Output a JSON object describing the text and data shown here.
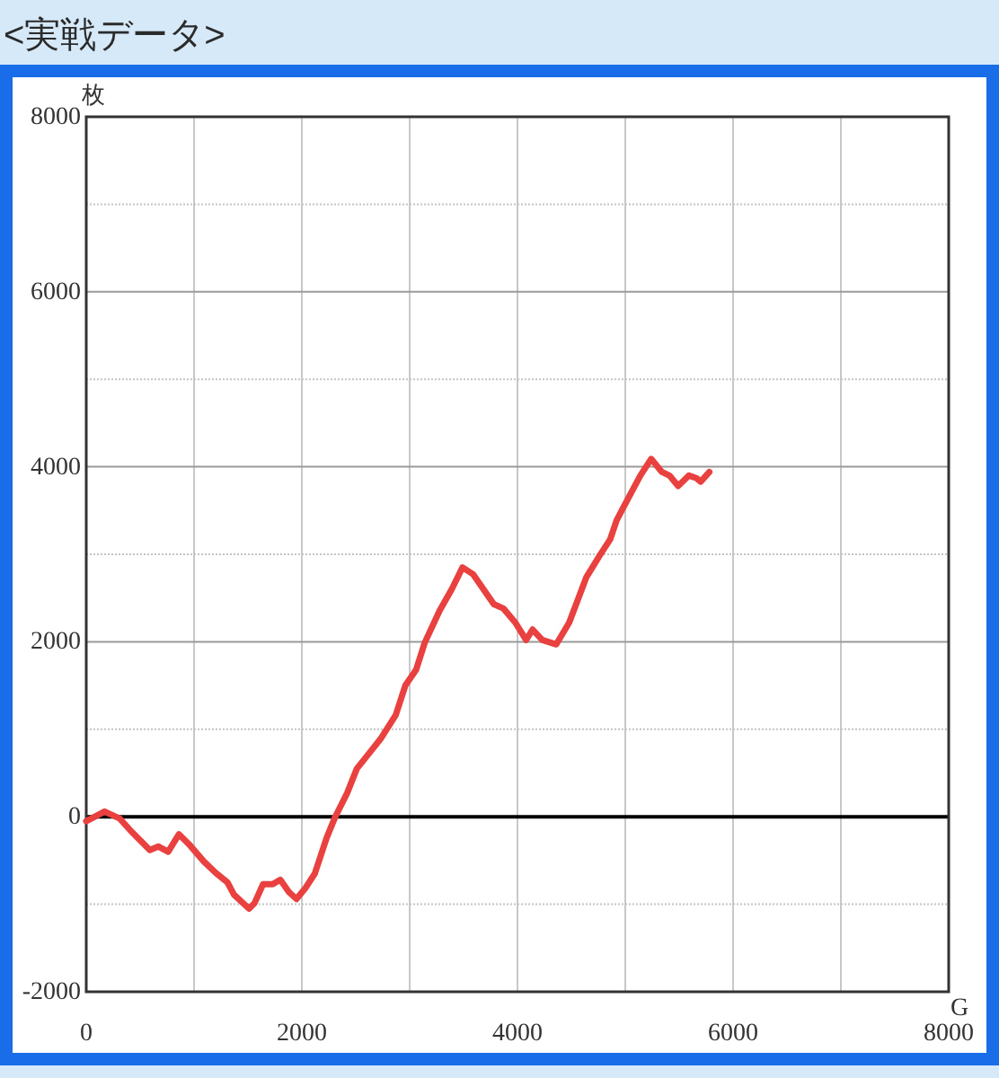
{
  "chart_data": {
    "type": "line",
    "title": "<実戦データ>",
    "xlabel": "G",
    "ylabel": "枚",
    "series": [
      {
        "color": "#e8413f",
        "x": [
          0,
          170,
          310,
          420,
          590,
          670,
          760,
          860,
          950,
          1090,
          1200,
          1310,
          1370,
          1510,
          1560,
          1640,
          1730,
          1800,
          1880,
          1950,
          2030,
          2120,
          2230,
          2310,
          2420,
          2510,
          2620,
          2730,
          2870,
          2960,
          3060,
          3140,
          3280,
          3390,
          3490,
          3590,
          3780,
          3870,
          3980,
          4080,
          4140,
          4230,
          4360,
          4480,
          4640,
          4760,
          4860,
          4920,
          4980,
          5140,
          5240,
          5340,
          5410,
          5490,
          5590,
          5660,
          5700,
          5780
        ],
        "values": [
          -50,
          60,
          -20,
          -170,
          -380,
          -340,
          -400,
          -200,
          -310,
          -510,
          -640,
          -750,
          -890,
          -1050,
          -990,
          -770,
          -770,
          -720,
          -860,
          -940,
          -820,
          -650,
          -240,
          0,
          270,
          550,
          720,
          890,
          1160,
          1500,
          1680,
          1990,
          2360,
          2600,
          2850,
          2770,
          2430,
          2380,
          2220,
          2020,
          2140,
          2020,
          1970,
          2220,
          2740,
          2980,
          3170,
          3390,
          3530,
          3900,
          4090,
          3940,
          3900,
          3780,
          3900,
          3870,
          3830,
          3940
        ]
      }
    ],
    "xlim": [
      0,
      8000
    ],
    "ylim": [
      -2000,
      8000
    ],
    "xticks": [
      0,
      {
        "value": 1000,
        "label": null
      },
      2000,
      {
        "value": 3000,
        "label": null
      },
      4000,
      {
        "value": 5000,
        "label": null
      },
      6000,
      {
        "value": 7000,
        "label": null
      },
      8000
    ],
    "yticks": [
      -2000,
      {
        "value": -1000,
        "label": null
      },
      0,
      {
        "value": 1000,
        "label": null
      },
      2000,
      {
        "value": 3000,
        "label": null
      },
      4000,
      {
        "value": 5000,
        "label": null
      },
      6000,
      {
        "value": 7000,
        "label": null
      },
      8000
    ],
    "grid": true,
    "line_style": "solid",
    "ref_lines": [
      {
        "axis": "y",
        "value": 0,
        "color": "#000000"
      }
    ]
  }
}
